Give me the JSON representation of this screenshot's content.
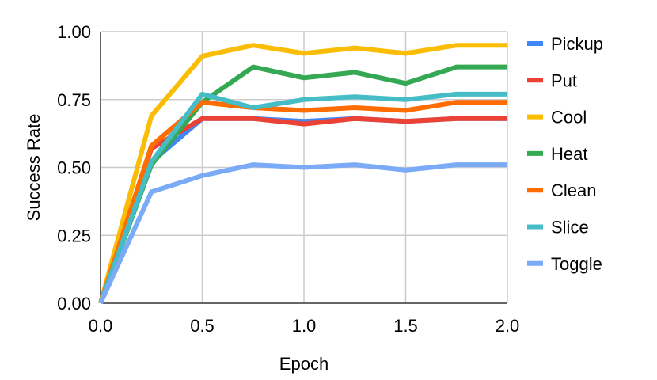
{
  "chart_data": {
    "type": "line",
    "title": "",
    "xlabel": "Epoch",
    "ylabel": "Success Rate",
    "xlim": [
      0,
      2
    ],
    "ylim": [
      0,
      1
    ],
    "x": [
      0,
      0.25,
      0.5,
      0.75,
      1.0,
      1.25,
      1.5,
      1.75,
      2.0
    ],
    "x_ticks": [
      0,
      0.5,
      1.0,
      1.5,
      2.0
    ],
    "x_tick_labels": [
      "0.0",
      "0.5",
      "1.0",
      "1.5",
      "2.0"
    ],
    "y_ticks": [
      0,
      0.25,
      0.5,
      0.75,
      1.0
    ],
    "y_tick_labels": [
      "0.00",
      "0.25",
      "0.50",
      "0.75",
      "1.00"
    ],
    "grid": true,
    "legend_position": "right",
    "series": [
      {
        "name": "Pickup",
        "color": "#4285F4",
        "values": [
          0.0,
          0.52,
          0.68,
          0.68,
          0.67,
          0.68,
          0.67,
          0.68,
          0.68
        ]
      },
      {
        "name": "Put",
        "color": "#EA4335",
        "values": [
          0.0,
          0.57,
          0.68,
          0.68,
          0.66,
          0.68,
          0.67,
          0.68,
          0.68
        ]
      },
      {
        "name": "Cool",
        "color": "#FBBC04",
        "values": [
          0.0,
          0.69,
          0.91,
          0.95,
          0.92,
          0.94,
          0.92,
          0.95,
          0.95
        ]
      },
      {
        "name": "Heat",
        "color": "#34A853",
        "values": [
          0.0,
          0.51,
          0.74,
          0.87,
          0.83,
          0.85,
          0.81,
          0.87,
          0.87
        ]
      },
      {
        "name": "Clean",
        "color": "#FF6D01",
        "values": [
          0.0,
          0.58,
          0.74,
          0.72,
          0.71,
          0.72,
          0.71,
          0.74,
          0.74
        ]
      },
      {
        "name": "Slice",
        "color": "#46BDC6",
        "values": [
          0.0,
          0.52,
          0.77,
          0.72,
          0.75,
          0.76,
          0.75,
          0.77,
          0.77
        ]
      },
      {
        "name": "Toggle",
        "color": "#7BAAF7",
        "values": [
          0.0,
          0.41,
          0.47,
          0.51,
          0.5,
          0.51,
          0.49,
          0.51,
          0.51
        ]
      }
    ]
  }
}
